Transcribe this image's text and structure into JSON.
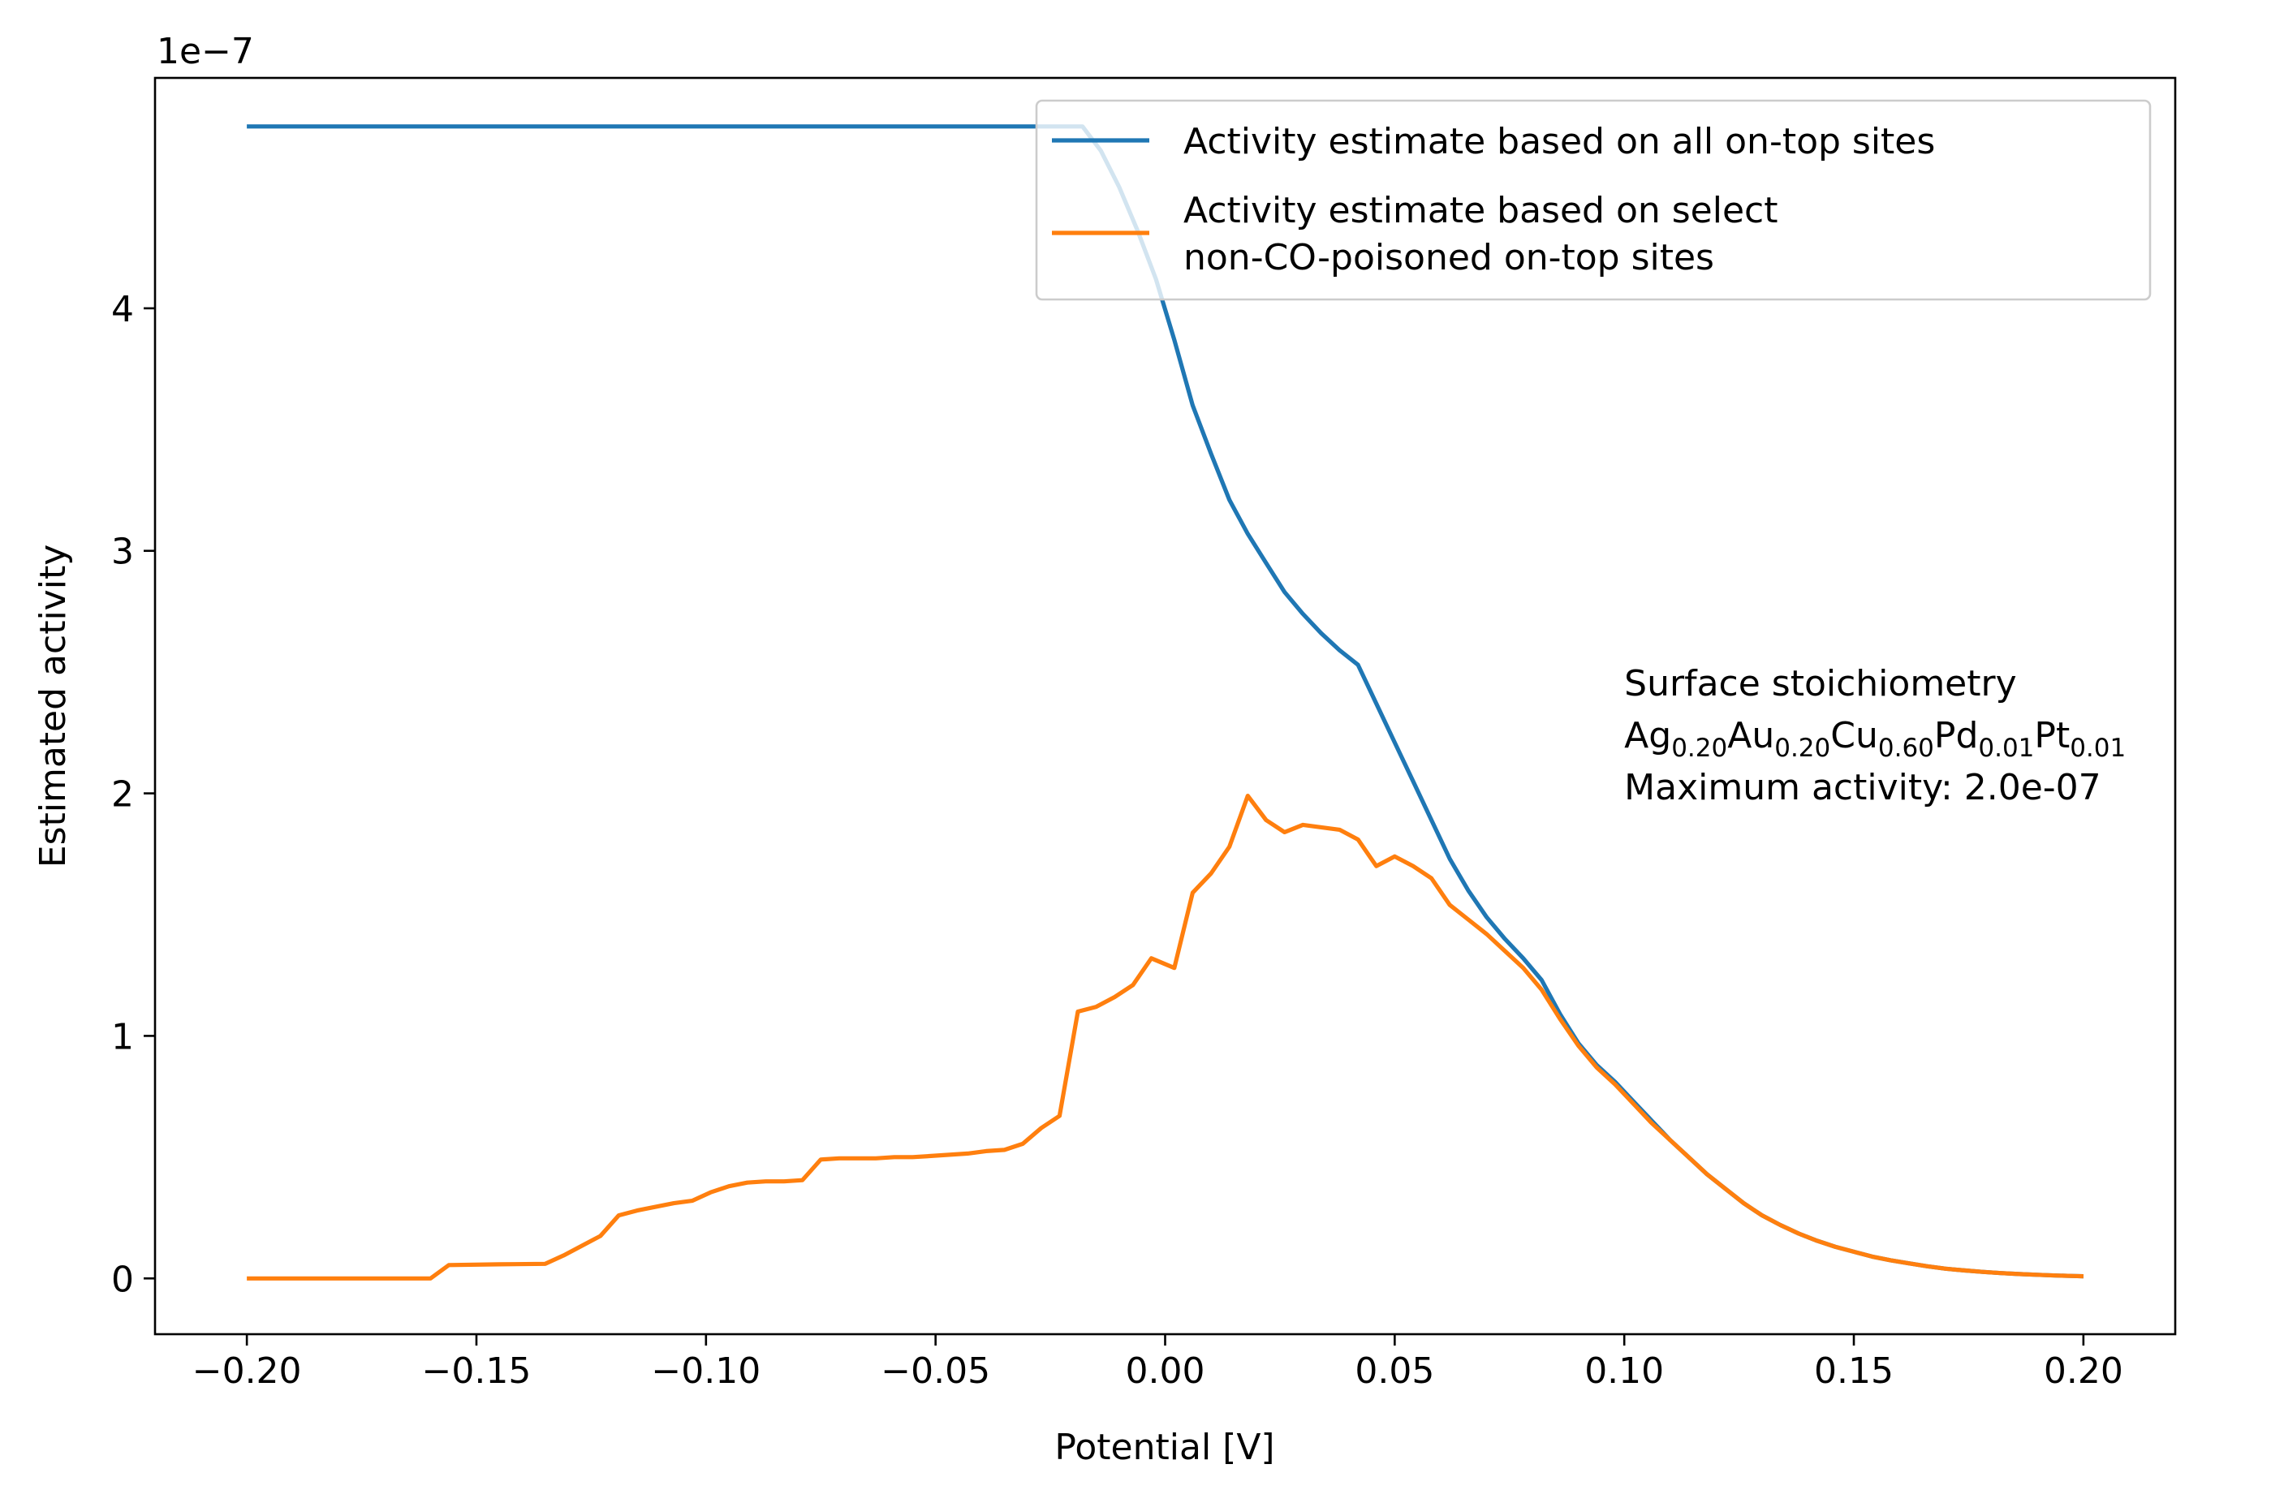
{
  "chart_data": {
    "type": "line",
    "xlabel": "Potential [V]",
    "ylabel": "Estimated activity",
    "y_offset_label": "1e−7",
    "xlim": [
      -0.22,
      0.22
    ],
    "ylim": [
      -0.23,
      4.95
    ],
    "x_ticks": [
      -0.2,
      -0.15,
      -0.1,
      -0.05,
      0.0,
      0.05,
      0.1,
      0.15,
      0.2
    ],
    "x_tick_labels": [
      "−0.20",
      "−0.15",
      "−0.10",
      "−0.05",
      "0.00",
      "0.05",
      "0.10",
      "0.15",
      "0.20"
    ],
    "y_ticks": [
      0,
      1,
      2,
      3,
      4
    ],
    "y_tick_labels": [
      "0",
      "1",
      "2",
      "3",
      "4"
    ],
    "grid": false,
    "legend_position": "top-right",
    "series": [
      {
        "name": "Activity estimate based on all on-top sites",
        "color": "#1f77b4",
        "x": [
          -0.2,
          -0.05,
          -0.018,
          -0.014,
          -0.01,
          -0.006,
          -0.002,
          0.002,
          0.006,
          0.01,
          0.014,
          0.018,
          0.022,
          0.026,
          0.03,
          0.034,
          0.038,
          0.042,
          0.046,
          0.05,
          0.054,
          0.058,
          0.062,
          0.066,
          0.07,
          0.074,
          0.078,
          0.082,
          0.086,
          0.09,
          0.094,
          0.098,
          0.102,
          0.106,
          0.11,
          0.114,
          0.118,
          0.122,
          0.126,
          0.13,
          0.134,
          0.138,
          0.142,
          0.146,
          0.15,
          0.154,
          0.158,
          0.162,
          0.166,
          0.17,
          0.174,
          0.178,
          0.182,
          0.186,
          0.19,
          0.194,
          0.198,
          0.2
        ],
        "y": [
          4.75,
          4.75,
          4.75,
          4.65,
          4.5,
          4.32,
          4.12,
          3.87,
          3.6,
          3.4,
          3.21,
          3.07,
          2.95,
          2.83,
          2.74,
          2.66,
          2.59,
          2.53,
          2.37,
          2.21,
          2.05,
          1.89,
          1.73,
          1.6,
          1.49,
          1.4,
          1.32,
          1.23,
          1.09,
          0.97,
          0.88,
          0.81,
          0.73,
          0.65,
          0.57,
          0.5,
          0.43,
          0.37,
          0.31,
          0.26,
          0.22,
          0.185,
          0.155,
          0.13,
          0.11,
          0.09,
          0.075,
          0.062,
          0.05,
          0.04,
          0.033,
          0.027,
          0.022,
          0.018,
          0.015,
          0.012,
          0.01,
          0.009
        ]
      },
      {
        "name": "Activity estimate based on select non-CO-poisoned on-top sites",
        "color": "#ff7f0e",
        "x": [
          -0.2,
          -0.16,
          -0.156,
          -0.145,
          -0.135,
          -0.131,
          -0.127,
          -0.123,
          -0.119,
          -0.115,
          -0.111,
          -0.107,
          -0.103,
          -0.099,
          -0.095,
          -0.091,
          -0.087,
          -0.083,
          -0.079,
          -0.075,
          -0.071,
          -0.067,
          -0.063,
          -0.059,
          -0.055,
          -0.051,
          -0.047,
          -0.043,
          -0.039,
          -0.035,
          -0.031,
          -0.027,
          -0.023,
          -0.019,
          -0.015,
          -0.011,
          -0.007,
          -0.003,
          0.002,
          0.006,
          0.01,
          0.014,
          0.018,
          0.022,
          0.026,
          0.03,
          0.034,
          0.038,
          0.042,
          0.046,
          0.05,
          0.054,
          0.058,
          0.062,
          0.066,
          0.07,
          0.074,
          0.078,
          0.082,
          0.086,
          0.09,
          0.094,
          0.098,
          0.102,
          0.106,
          0.11,
          0.114,
          0.118,
          0.122,
          0.126,
          0.13,
          0.134,
          0.138,
          0.142,
          0.146,
          0.15,
          0.154,
          0.158,
          0.162,
          0.166,
          0.17,
          0.174,
          0.178,
          0.182,
          0.186,
          0.19,
          0.194,
          0.198,
          0.2
        ],
        "y": [
          0.0,
          0.0,
          0.055,
          0.058,
          0.06,
          0.095,
          0.135,
          0.175,
          0.26,
          0.28,
          0.295,
          0.31,
          0.32,
          0.355,
          0.38,
          0.395,
          0.4,
          0.4,
          0.405,
          0.49,
          0.495,
          0.495,
          0.495,
          0.5,
          0.5,
          0.505,
          0.51,
          0.515,
          0.525,
          0.53,
          0.555,
          0.62,
          0.67,
          1.1,
          1.12,
          1.16,
          1.21,
          1.32,
          1.28,
          1.59,
          1.67,
          1.78,
          1.99,
          1.89,
          1.84,
          1.87,
          1.86,
          1.85,
          1.81,
          1.7,
          1.74,
          1.7,
          1.65,
          1.54,
          1.48,
          1.42,
          1.35,
          1.28,
          1.19,
          1.07,
          0.96,
          0.87,
          0.8,
          0.72,
          0.64,
          0.57,
          0.5,
          0.43,
          0.37,
          0.31,
          0.26,
          0.22,
          0.185,
          0.155,
          0.13,
          0.11,
          0.09,
          0.075,
          0.062,
          0.05,
          0.04,
          0.033,
          0.027,
          0.022,
          0.018,
          0.015,
          0.012,
          0.01,
          0.009
        ]
      }
    ],
    "legend": [
      {
        "lines": [
          "Activity estimate based on all on-top sites"
        ],
        "color": "#1f77b4"
      },
      {
        "lines": [
          "Activity estimate based on select",
          "non-CO-poisoned on-top sites"
        ],
        "color": "#ff7f0e"
      }
    ],
    "annotation": {
      "line1": "Surface stoichiometry",
      "formula": [
        {
          "el": "Ag",
          "sub": "0.20"
        },
        {
          "el": "Au",
          "sub": "0.20"
        },
        {
          "el": "Cu",
          "sub": "0.60"
        },
        {
          "el": "Pd",
          "sub": "0.01"
        },
        {
          "el": "Pt",
          "sub": "0.01"
        }
      ],
      "line3": "Maximum activity: 2.0e-07",
      "anchor_x": 0.1,
      "anchor_y": 2.45
    }
  }
}
